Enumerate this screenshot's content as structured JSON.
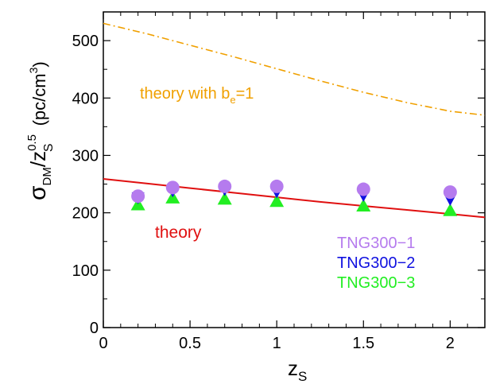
{
  "chart_data": {
    "type": "scatter",
    "title": "",
    "xlabel": "z",
    "xlabel_sub": "S",
    "ylabel_parts": {
      "sigma": "σ",
      "sigma_sub": "DM",
      "slash": "/z",
      "z_sub": "S",
      "z_sup": "0.5",
      "units_open": "(pc/cm",
      "units_sup": "3",
      "units_close": ")"
    },
    "xlim": [
      0,
      2.2
    ],
    "ylim": [
      0,
      550
    ],
    "x_ticks": [
      0,
      0.5,
      1,
      1.5,
      2
    ],
    "x_tick_labels": [
      "0",
      "0.5",
      "1",
      "1.5",
      "2"
    ],
    "y_ticks": [
      0,
      100,
      200,
      300,
      400,
      500
    ],
    "y_tick_labels": [
      "0",
      "100",
      "200",
      "300",
      "400",
      "500"
    ],
    "grid": false,
    "legend_position": "bottom-right",
    "series": [
      {
        "name": "TNG300−1",
        "marker": "circle",
        "color": "#b57bee",
        "x": [
          0.2,
          0.4,
          0.7,
          1.0,
          1.5,
          2.0
        ],
        "y": [
          229,
          244,
          246,
          246,
          241,
          236
        ]
      },
      {
        "name": "TNG300−2",
        "marker": "triangle-down",
        "color": "#1010e0",
        "x": [
          0.2,
          0.4,
          0.7,
          1.0,
          1.5,
          2.0
        ],
        "y": [
          226,
          238,
          240,
          236,
          230,
          223
        ]
      },
      {
        "name": "TNG300−3",
        "marker": "triangle-up",
        "color": "#22ee22",
        "x": [
          0.2,
          0.4,
          0.7,
          1.0,
          1.5,
          2.0
        ],
        "y": [
          214,
          226,
          224,
          220,
          212,
          204
        ]
      }
    ],
    "curves": [
      {
        "label": "theory",
        "style": "solid",
        "color": "#e01010",
        "x": [
          0,
          0.25,
          0.5,
          0.75,
          1.0,
          1.25,
          1.5,
          1.75,
          2.0,
          2.2
        ],
        "y": [
          259,
          251,
          243,
          235,
          227,
          219,
          212,
          205,
          198,
          192
        ]
      },
      {
        "label_main": "theory with b",
        "label_sub": "e",
        "label_tail": "=1",
        "style": "dashdot",
        "color": "#f0a000",
        "x": [
          0,
          0.25,
          0.5,
          0.75,
          1.0,
          1.25,
          1.5,
          1.75,
          2.0,
          2.2
        ],
        "y": [
          530,
          512,
          492,
          472,
          451,
          430,
          410,
          392,
          377,
          370
        ]
      }
    ]
  }
}
